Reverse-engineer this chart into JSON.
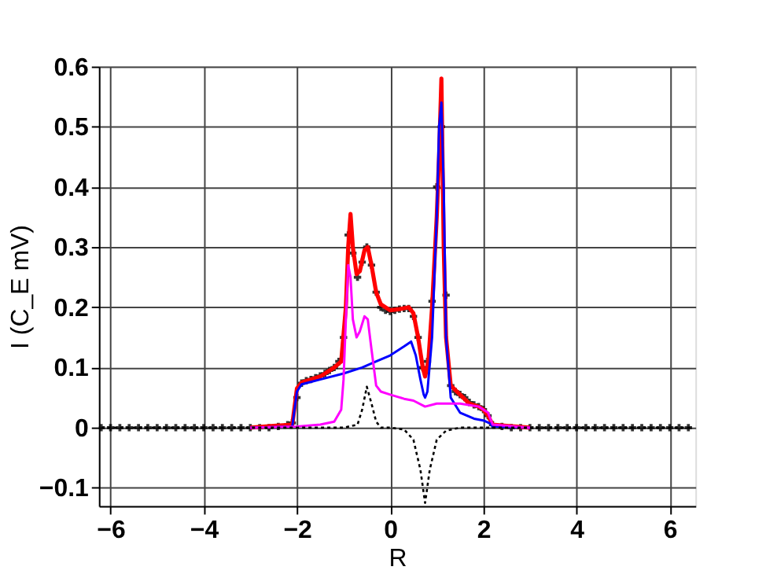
{
  "chart_data": {
    "type": "line",
    "xlabel": "R",
    "ylabel": "I (C_E mV)",
    "xlim": [
      -6.25,
      6.55
    ],
    "ylim": [
      -0.13,
      0.6
    ],
    "xticks": [
      -6,
      -4,
      -2,
      0,
      2,
      4,
      6
    ],
    "yticks": [
      -0.1,
      {
        "value": 0,
        "label": "0"
      },
      0.1,
      0.2,
      0.3,
      0.4,
      0.5,
      0.6
    ],
    "grid": true,
    "series": [
      {
        "type": "scatter",
        "marker": "cross",
        "color": "#000000",
        "x": [
          -6.2,
          -6.0,
          -5.8,
          -5.6,
          -5.4,
          -5.2,
          -5.0,
          -4.8,
          -4.6,
          -4.4,
          -4.2,
          -4.0,
          -3.8,
          -3.6,
          -3.4,
          -3.2,
          -3.0,
          -2.8,
          -2.6,
          -2.4,
          -2.2,
          -2.1,
          -2.0,
          -1.9,
          -1.8,
          -1.7,
          -1.6,
          -1.5,
          -1.4,
          -1.3,
          -1.2,
          -1.1,
          -1.0,
          -0.9,
          -0.8,
          -0.7,
          -0.6,
          -0.5,
          -0.4,
          -0.3,
          -0.2,
          -0.1,
          0.0,
          0.1,
          0.2,
          0.3,
          0.4,
          0.5,
          0.6,
          0.7,
          0.8,
          0.9,
          1.0,
          1.1,
          1.2,
          1.3,
          1.4,
          1.5,
          1.6,
          1.7,
          1.8,
          1.9,
          2.0,
          2.1,
          2.2,
          2.4,
          2.6,
          2.8,
          3.0,
          3.2,
          3.4,
          3.6,
          3.8,
          4.0,
          4.2,
          4.4,
          4.6,
          4.8,
          5.0,
          5.2,
          5.4,
          5.6,
          5.8,
          6.0,
          6.2,
          6.4
        ],
        "values": [
          0,
          0,
          0,
          0,
          0,
          0,
          0,
          0,
          0,
          0,
          0,
          0,
          0,
          0,
          0,
          0,
          0,
          0,
          0,
          0.002,
          0.005,
          0.008,
          0.05,
          0.074,
          0.078,
          0.08,
          0.083,
          0.086,
          0.09,
          0.095,
          0.1,
          0.11,
          0.15,
          0.32,
          0.29,
          0.25,
          0.275,
          0.3,
          0.27,
          0.225,
          0.2,
          0.195,
          0.193,
          0.195,
          0.197,
          0.198,
          0.198,
          0.185,
          0.15,
          0.1,
          0.11,
          0.21,
          0.4,
          0.5,
          0.22,
          0.07,
          0.06,
          0.055,
          0.05,
          0.042,
          0.038,
          0.035,
          0.03,
          0.02,
          0.005,
          0.002,
          0,
          0,
          0,
          0,
          0,
          0,
          0,
          0,
          0,
          0,
          0,
          0,
          0,
          0,
          0,
          0,
          0,
          0,
          0,
          0
        ]
      },
      {
        "color": "#ff0000",
        "x": [
          -3,
          -2.5,
          -2.1,
          -2.0,
          -1.9,
          -1.5,
          -1.2,
          -1.05,
          -0.95,
          -0.9,
          -0.85,
          -0.8,
          -0.72,
          -0.65,
          -0.55,
          -0.48,
          -0.4,
          -0.3,
          -0.2,
          0,
          0.2,
          0.4,
          0.5,
          0.6,
          0.7,
          0.75,
          0.82,
          0.9,
          1.0,
          1.05,
          1.1,
          1.15,
          1.2,
          1.3,
          1.5,
          1.7,
          1.9,
          2.0,
          2.1,
          2.2,
          2.5,
          3.0
        ],
        "values": [
          0,
          0.003,
          0.005,
          0.065,
          0.075,
          0.085,
          0.1,
          0.11,
          0.2,
          0.3,
          0.355,
          0.3,
          0.255,
          0.26,
          0.295,
          0.3,
          0.27,
          0.225,
          0.205,
          0.195,
          0.197,
          0.2,
          0.19,
          0.15,
          0.1,
          0.085,
          0.11,
          0.2,
          0.35,
          0.45,
          0.58,
          0.3,
          0.15,
          0.07,
          0.055,
          0.04,
          0.035,
          0.03,
          0.02,
          0.005,
          0.003,
          0
        ]
      },
      {
        "color": "#0000ff",
        "x": [
          -3,
          -2.1,
          -2.0,
          -1.9,
          -1.5,
          -1.0,
          -0.6,
          -0.3,
          0,
          0.3,
          0.45,
          0.55,
          0.65,
          0.72,
          0.75,
          0.8,
          0.9,
          1.0,
          1.05,
          1.1,
          1.15,
          1.2,
          1.3,
          1.5,
          1.8,
          2.0,
          2.15,
          2.2,
          3.0
        ],
        "values": [
          0,
          0.002,
          0.06,
          0.072,
          0.08,
          0.09,
          0.1,
          0.11,
          0.12,
          0.135,
          0.143,
          0.12,
          0.08,
          0.055,
          0.05,
          0.06,
          0.15,
          0.35,
          0.5,
          0.54,
          0.4,
          0.15,
          0.05,
          0.025,
          0.015,
          0.012,
          0.007,
          0.002,
          0
        ]
      },
      {
        "color": "#ff00ff",
        "x": [
          -3,
          -2,
          -1.5,
          -1.2,
          -1.05,
          -1.0,
          -0.95,
          -0.9,
          -0.85,
          -0.8,
          -0.72,
          -0.65,
          -0.55,
          -0.48,
          -0.4,
          -0.3,
          -0.2,
          0,
          0.3,
          0.5,
          0.75,
          1.0,
          1.5,
          1.9,
          2.1,
          2.2,
          3.0
        ],
        "values": [
          0,
          0.002,
          0.005,
          0.01,
          0.03,
          0.08,
          0.18,
          0.27,
          0.25,
          0.18,
          0.15,
          0.16,
          0.185,
          0.18,
          0.13,
          0.07,
          0.06,
          0.055,
          0.048,
          0.045,
          0.035,
          0.04,
          0.04,
          0.035,
          0.025,
          0.005,
          0
        ]
      },
      {
        "line_style": "dotted",
        "color": "#000000",
        "x": [
          -6.2,
          -1.0,
          -0.7,
          -0.6,
          -0.5,
          -0.4,
          -0.3,
          -0.2,
          0,
          0.3,
          0.5,
          0.65,
          0.75,
          0.85,
          1.0,
          1.2,
          1.5,
          6.5
        ],
        "values": [
          0,
          0,
          0.005,
          0.03,
          0.068,
          0.04,
          0.01,
          0,
          0,
          -0.003,
          -0.02,
          -0.07,
          -0.125,
          -0.07,
          -0.02,
          -0.005,
          0,
          0
        ]
      }
    ]
  }
}
